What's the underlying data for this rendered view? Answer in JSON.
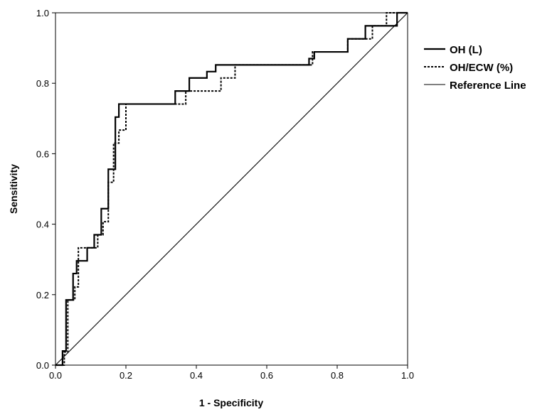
{
  "chart_data": {
    "type": "line",
    "title": "",
    "xlabel": "1 - Specificity",
    "ylabel": "Sensitivity",
    "xlim": [
      0,
      1
    ],
    "ylim": [
      0,
      1
    ],
    "xticks": [
      "0.0",
      "0.2",
      "0.4",
      "0.6",
      "0.8",
      "1.0"
    ],
    "yticks": [
      "0.0",
      "0.2",
      "0.4",
      "0.6",
      "0.8",
      "1.0"
    ],
    "grid": false,
    "legend_position": "right",
    "series": [
      {
        "name": "OH (L)",
        "style": "solid-thick",
        "color": "#000000",
        "x": [
          0.0,
          0.02,
          0.02,
          0.03,
          0.03,
          0.05,
          0.05,
          0.06,
          0.06,
          0.07,
          0.07,
          0.09,
          0.09,
          0.11,
          0.11,
          0.13,
          0.13,
          0.15,
          0.15,
          0.16,
          0.16,
          0.17,
          0.17,
          0.18,
          0.18,
          0.195,
          0.195,
          0.34,
          0.34,
          0.36,
          0.36,
          0.38,
          0.38,
          0.43,
          0.43,
          0.455,
          0.455,
          0.72,
          0.72,
          0.735,
          0.735,
          0.81,
          0.81,
          0.83,
          0.83,
          0.855,
          0.855,
          0.88,
          0.88,
          0.96,
          0.96,
          0.97,
          0.97,
          1.0
        ],
        "y": [
          0.0,
          0.0,
          0.04,
          0.04,
          0.185,
          0.185,
          0.26,
          0.26,
          0.296,
          0.296,
          0.296,
          0.296,
          0.333,
          0.333,
          0.37,
          0.37,
          0.444,
          0.444,
          0.556,
          0.556,
          0.556,
          0.556,
          0.704,
          0.704,
          0.741,
          0.741,
          0.741,
          0.741,
          0.778,
          0.778,
          0.778,
          0.778,
          0.815,
          0.815,
          0.833,
          0.833,
          0.852,
          0.852,
          0.87,
          0.87,
          0.889,
          0.889,
          0.889,
          0.889,
          0.926,
          0.926,
          0.926,
          0.926,
          0.963,
          0.963,
          0.963,
          0.963,
          1.0,
          1.0
        ]
      },
      {
        "name": "OH/ECW (%)",
        "style": "dotted",
        "color": "#000000",
        "x": [
          0.0,
          0.025,
          0.025,
          0.035,
          0.035,
          0.055,
          0.055,
          0.065,
          0.065,
          0.1,
          0.1,
          0.12,
          0.12,
          0.135,
          0.135,
          0.15,
          0.15,
          0.165,
          0.165,
          0.18,
          0.18,
          0.2,
          0.2,
          0.37,
          0.37,
          0.47,
          0.47,
          0.49,
          0.49,
          0.51,
          0.51,
          0.73,
          0.73,
          0.8,
          0.8,
          0.83,
          0.83,
          0.87,
          0.87,
          0.9,
          0.9,
          0.94,
          0.94,
          0.95,
          0.95,
          1.0
        ],
        "y": [
          0.0,
          0.0,
          0.037,
          0.037,
          0.185,
          0.185,
          0.222,
          0.222,
          0.333,
          0.333,
          0.333,
          0.333,
          0.37,
          0.37,
          0.407,
          0.407,
          0.519,
          0.519,
          0.63,
          0.63,
          0.667,
          0.667,
          0.741,
          0.741,
          0.778,
          0.778,
          0.815,
          0.815,
          0.815,
          0.815,
          0.852,
          0.852,
          0.889,
          0.889,
          0.889,
          0.889,
          0.926,
          0.926,
          0.926,
          0.926,
          0.963,
          0.963,
          1.0,
          1.0,
          1.0,
          1.0
        ]
      },
      {
        "name": "Reference Line",
        "style": "solid-thin",
        "color": "#000000",
        "x": [
          0.0,
          1.0
        ],
        "y": [
          0.0,
          1.0
        ]
      }
    ]
  }
}
